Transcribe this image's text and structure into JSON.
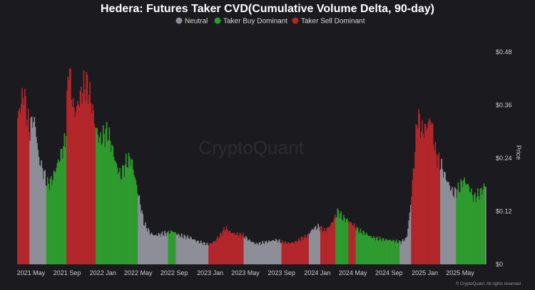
{
  "chart_data": {
    "type": "bar",
    "title": "Hedera: Futures Taker CVD(Cumulative Volume Delta, 90-day)",
    "ylabel": "Price",
    "xlabel": "",
    "ylim": [
      0,
      0.52
    ],
    "y_ticks": [
      "$0",
      "$0.12",
      "$0.24",
      "$0.36",
      "$0.48"
    ],
    "y_tick_values": [
      0,
      0.12,
      0.24,
      0.36,
      0.48
    ],
    "x_ticks": [
      {
        "label": "2021 May",
        "date": "2021-05-01"
      },
      {
        "label": "2021 Sep",
        "date": "2021-09-01"
      },
      {
        "label": "2022 Jan",
        "date": "2022-01-01"
      },
      {
        "label": "2022 May",
        "date": "2022-05-01"
      },
      {
        "label": "2022 Sep",
        "date": "2022-09-01"
      },
      {
        "label": "2023 Jan",
        "date": "2023-01-01"
      },
      {
        "label": "2023 May",
        "date": "2023-05-01"
      },
      {
        "label": "2023 Sep",
        "date": "2023-09-01"
      },
      {
        "label": "2024 Jan",
        "date": "2024-01-01"
      },
      {
        "label": "2024 May",
        "date": "2024-05-01"
      },
      {
        "label": "2024 Sep",
        "date": "2024-09-01"
      },
      {
        "label": "2025 Jan",
        "date": "2025-01-01"
      },
      {
        "label": "2025 May",
        "date": "2025-05-01"
      }
    ],
    "x_range": [
      "2021-03-15",
      "2025-07-25"
    ],
    "legend": [
      {
        "name": "Neutral",
        "color": "#8e8e98"
      },
      {
        "name": "Taker Buy Dominant",
        "color": "#2e9b2e"
      },
      {
        "name": "Taker Sell Dominant",
        "color": "#b3262b"
      }
    ],
    "legend_position": "top-center",
    "grid": false,
    "watermark": "CryptoQuant",
    "credit": "© CryptoQuant. All rights reserved",
    "regime_colors": {
      "neutral": "#8e8e98",
      "buy": "#2e9b2e",
      "sell": "#b3262b"
    },
    "price_points": [
      [
        "2021-03-15",
        0.33
      ],
      [
        "2021-03-25",
        0.36
      ],
      [
        "2021-04-05",
        0.39
      ],
      [
        "2021-04-15",
        0.34
      ],
      [
        "2021-04-25",
        0.3
      ],
      [
        "2021-05-05",
        0.33
      ],
      [
        "2021-05-15",
        0.31
      ],
      [
        "2021-05-25",
        0.24
      ],
      [
        "2021-06-10",
        0.21
      ],
      [
        "2021-06-25",
        0.18
      ],
      [
        "2021-07-10",
        0.19
      ],
      [
        "2021-07-25",
        0.22
      ],
      [
        "2021-08-10",
        0.25
      ],
      [
        "2021-08-25",
        0.28
      ],
      [
        "2021-09-05",
        0.46
      ],
      [
        "2021-09-15",
        0.38
      ],
      [
        "2021-09-25",
        0.34
      ],
      [
        "2021-10-10",
        0.37
      ],
      [
        "2021-10-25",
        0.4
      ],
      [
        "2021-11-05",
        0.41
      ],
      [
        "2021-11-20",
        0.37
      ],
      [
        "2021-12-05",
        0.31
      ],
      [
        "2021-12-20",
        0.28
      ],
      [
        "2022-01-01",
        0.29
      ],
      [
        "2022-01-15",
        0.3
      ],
      [
        "2022-02-01",
        0.26
      ],
      [
        "2022-02-15",
        0.22
      ],
      [
        "2022-03-01",
        0.2
      ],
      [
        "2022-03-20",
        0.23
      ],
      [
        "2022-04-05",
        0.24
      ],
      [
        "2022-04-20",
        0.19
      ],
      [
        "2022-05-05",
        0.14
      ],
      [
        "2022-05-20",
        0.09
      ],
      [
        "2022-06-10",
        0.07
      ],
      [
        "2022-06-25",
        0.065
      ],
      [
        "2022-07-15",
        0.068
      ],
      [
        "2022-08-05",
        0.07
      ],
      [
        "2022-08-25",
        0.075
      ],
      [
        "2022-09-15",
        0.065
      ],
      [
        "2022-10-05",
        0.062
      ],
      [
        "2022-10-25",
        0.06
      ],
      [
        "2022-11-15",
        0.052
      ],
      [
        "2022-12-05",
        0.048
      ],
      [
        "2022-12-25",
        0.044
      ],
      [
        "2023-01-15",
        0.052
      ],
      [
        "2023-02-05",
        0.068
      ],
      [
        "2023-02-20",
        0.082
      ],
      [
        "2023-03-10",
        0.072
      ],
      [
        "2023-03-30",
        0.068
      ],
      [
        "2023-04-20",
        0.066
      ],
      [
        "2023-05-10",
        0.055
      ],
      [
        "2023-06-05",
        0.046
      ],
      [
        "2023-06-25",
        0.048
      ],
      [
        "2023-07-20",
        0.052
      ],
      [
        "2023-08-10",
        0.055
      ],
      [
        "2023-09-01",
        0.05
      ],
      [
        "2023-09-25",
        0.048
      ],
      [
        "2023-10-15",
        0.05
      ],
      [
        "2023-11-05",
        0.058
      ],
      [
        "2023-11-25",
        0.064
      ],
      [
        "2023-12-15",
        0.08
      ],
      [
        "2024-01-05",
        0.085
      ],
      [
        "2024-01-25",
        0.075
      ],
      [
        "2024-02-15",
        0.09
      ],
      [
        "2024-03-10",
        0.12
      ],
      [
        "2024-03-25",
        0.105
      ],
      [
        "2024-04-10",
        0.1
      ],
      [
        "2024-04-30",
        0.09
      ],
      [
        "2024-05-20",
        0.075
      ],
      [
        "2024-06-10",
        0.07
      ],
      [
        "2024-06-30",
        0.062
      ],
      [
        "2024-07-20",
        0.058
      ],
      [
        "2024-08-10",
        0.056
      ],
      [
        "2024-08-30",
        0.055
      ],
      [
        "2024-09-20",
        0.052
      ],
      [
        "2024-10-10",
        0.05
      ],
      [
        "2024-10-30",
        0.06
      ],
      [
        "2024-11-10",
        0.12
      ],
      [
        "2024-11-25",
        0.24
      ],
      [
        "2024-12-05",
        0.34
      ],
      [
        "2024-12-20",
        0.3
      ],
      [
        "2025-01-05",
        0.31
      ],
      [
        "2025-01-20",
        0.33
      ],
      [
        "2025-02-05",
        0.25
      ],
      [
        "2025-02-25",
        0.22
      ],
      [
        "2025-03-15",
        0.19
      ],
      [
        "2025-04-05",
        0.16
      ],
      [
        "2025-04-25",
        0.17
      ],
      [
        "2025-05-10",
        0.19
      ],
      [
        "2025-05-25",
        0.18
      ],
      [
        "2025-06-15",
        0.15
      ],
      [
        "2025-07-05",
        0.16
      ],
      [
        "2025-07-25",
        0.18
      ]
    ],
    "regimes": [
      {
        "start": "2021-03-15",
        "end": "2021-04-25",
        "color": "sell"
      },
      {
        "start": "2021-04-25",
        "end": "2021-05-20",
        "color": "neutral"
      },
      {
        "start": "2021-05-20",
        "end": "2021-06-20",
        "color": "neutral"
      },
      {
        "start": "2021-06-20",
        "end": "2021-08-30",
        "color": "buy"
      },
      {
        "start": "2021-08-30",
        "end": "2021-12-05",
        "color": "sell"
      },
      {
        "start": "2021-12-05",
        "end": "2022-04-30",
        "color": "buy"
      },
      {
        "start": "2022-04-30",
        "end": "2022-08-10",
        "color": "neutral"
      },
      {
        "start": "2022-08-10",
        "end": "2022-09-05",
        "color": "buy"
      },
      {
        "start": "2022-09-05",
        "end": "2022-12-25",
        "color": "neutral"
      },
      {
        "start": "2022-12-25",
        "end": "2023-04-25",
        "color": "sell"
      },
      {
        "start": "2023-04-25",
        "end": "2023-08-30",
        "color": "neutral"
      },
      {
        "start": "2023-08-30",
        "end": "2023-12-01",
        "color": "sell"
      },
      {
        "start": "2023-12-01",
        "end": "2024-01-10",
        "color": "neutral"
      },
      {
        "start": "2024-01-10",
        "end": "2024-03-01",
        "color": "sell"
      },
      {
        "start": "2024-03-01",
        "end": "2024-04-15",
        "color": "buy"
      },
      {
        "start": "2024-04-15",
        "end": "2024-05-10",
        "color": "sell"
      },
      {
        "start": "2024-05-10",
        "end": "2024-10-05",
        "color": "buy"
      },
      {
        "start": "2024-10-05",
        "end": "2024-11-15",
        "color": "neutral"
      },
      {
        "start": "2024-11-15",
        "end": "2025-02-20",
        "color": "sell"
      },
      {
        "start": "2025-02-20",
        "end": "2025-04-15",
        "color": "neutral"
      },
      {
        "start": "2025-04-15",
        "end": "2025-07-25",
        "color": "buy"
      }
    ]
  }
}
